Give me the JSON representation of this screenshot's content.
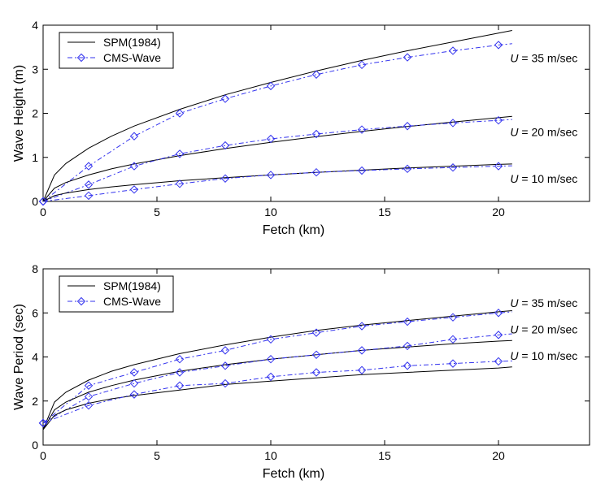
{
  "chart_data": [
    {
      "type": "line",
      "xlabel": "Fetch (km)",
      "ylabel": "Wave Height (m)",
      "xlim": [
        0,
        24
      ],
      "ylim": [
        0,
        4
      ],
      "xticks": [
        0,
        5,
        10,
        15,
        20
      ],
      "yticks": [
        0,
        1,
        2,
        3,
        4
      ],
      "grid": false,
      "legend_position": "top-left",
      "legend": [
        "SPM(1984)",
        "CMS-Wave"
      ],
      "series": [
        {
          "name": "SPM(1984)",
          "group": "U = 35 m/sec",
          "style": "solid",
          "x": [
            0,
            0.5,
            1,
            2,
            3,
            4,
            6,
            8,
            10,
            12,
            14,
            16,
            18,
            20,
            20.6
          ],
          "values": [
            0,
            0.6,
            0.86,
            1.21,
            1.48,
            1.71,
            2.09,
            2.42,
            2.7,
            2.96,
            3.2,
            3.42,
            3.62,
            3.82,
            3.88
          ]
        },
        {
          "name": "CMS-Wave",
          "group": "U = 35 m/sec",
          "style": "dashdot-diamond",
          "x": [
            0,
            2,
            4,
            6,
            8,
            10,
            12,
            14,
            16,
            18,
            20,
            20.6
          ],
          "values": [
            0,
            0.8,
            1.48,
            2.0,
            2.33,
            2.62,
            2.88,
            3.1,
            3.27,
            3.42,
            3.55,
            3.58
          ]
        },
        {
          "name": "SPM(1984)",
          "group": "U = 20 m/sec",
          "style": "solid",
          "x": [
            0,
            0.5,
            1,
            2,
            3,
            4,
            6,
            8,
            10,
            12,
            14,
            16,
            18,
            20,
            20.6
          ],
          "values": [
            0,
            0.3,
            0.43,
            0.6,
            0.74,
            0.85,
            1.04,
            1.2,
            1.34,
            1.47,
            1.59,
            1.7,
            1.8,
            1.9,
            1.93
          ]
        },
        {
          "name": "CMS-Wave",
          "group": "U = 20 m/sec",
          "style": "dashdot-diamond",
          "x": [
            0,
            2,
            4,
            6,
            8,
            10,
            12,
            14,
            16,
            18,
            20,
            20.6
          ],
          "values": [
            0,
            0.38,
            0.8,
            1.08,
            1.27,
            1.42,
            1.53,
            1.63,
            1.71,
            1.78,
            1.84,
            1.86
          ]
        },
        {
          "name": "SPM(1984)",
          "group": "U = 10 m/sec",
          "style": "solid",
          "x": [
            0,
            0.5,
            1,
            2,
            3,
            4,
            6,
            8,
            10,
            12,
            14,
            16,
            18,
            20,
            20.6
          ],
          "values": [
            0,
            0.13,
            0.19,
            0.27,
            0.33,
            0.38,
            0.47,
            0.54,
            0.6,
            0.66,
            0.71,
            0.76,
            0.8,
            0.84,
            0.85
          ]
        },
        {
          "name": "CMS-Wave",
          "group": "U = 10 m/sec",
          "style": "dashdot-diamond",
          "x": [
            0,
            2,
            4,
            6,
            8,
            10,
            12,
            14,
            16,
            18,
            20,
            20.6
          ],
          "values": [
            0,
            0.13,
            0.27,
            0.4,
            0.52,
            0.6,
            0.66,
            0.7,
            0.74,
            0.77,
            0.8,
            0.81
          ]
        }
      ],
      "annotations": [
        {
          "prefix": "U",
          "text": " = 35 m/sec",
          "x": 20.3,
          "y": 3.25
        },
        {
          "prefix": "U",
          "text": " = 20 m/sec",
          "x": 20.3,
          "y": 1.58
        },
        {
          "prefix": "U",
          "text": " = 10 m/sec",
          "x": 20.3,
          "y": 0.52
        }
      ]
    },
    {
      "type": "line",
      "xlabel": "Fetch (km)",
      "ylabel": "Wave Period (sec)",
      "xlim": [
        0,
        24
      ],
      "ylim": [
        0,
        8
      ],
      "xticks": [
        0,
        5,
        10,
        15,
        20
      ],
      "yticks": [
        0,
        2,
        4,
        6,
        8
      ],
      "grid": false,
      "legend_position": "top-left",
      "legend": [
        "SPM(1984)",
        "CMS-Wave"
      ],
      "series": [
        {
          "name": "SPM(1984)",
          "group": "U = 35 m/sec",
          "style": "solid",
          "x": [
            0,
            0.5,
            1,
            2,
            3,
            4,
            6,
            8,
            10,
            12,
            14,
            16,
            18,
            20,
            20.6
          ],
          "values": [
            0.7,
            1.95,
            2.4,
            2.95,
            3.35,
            3.65,
            4.15,
            4.55,
            4.9,
            5.2,
            5.45,
            5.65,
            5.85,
            6.05,
            6.1
          ]
        },
        {
          "name": "CMS-Wave",
          "group": "U = 35 m/sec",
          "style": "dashdot-diamond",
          "x": [
            0,
            2,
            4,
            6,
            8,
            10,
            12,
            14,
            16,
            18,
            20,
            20.6
          ],
          "values": [
            1.0,
            2.7,
            3.3,
            3.9,
            4.3,
            4.8,
            5.1,
            5.4,
            5.6,
            5.8,
            6.0,
            6.05
          ]
        },
        {
          "name": "SPM(1984)",
          "group": "U = 20 m/sec",
          "style": "solid",
          "x": [
            0,
            0.5,
            1,
            2,
            3,
            4,
            6,
            8,
            10,
            12,
            14,
            16,
            18,
            20,
            20.6
          ],
          "values": [
            0.7,
            1.6,
            1.95,
            2.4,
            2.7,
            2.95,
            3.35,
            3.65,
            3.9,
            4.1,
            4.3,
            4.45,
            4.6,
            4.72,
            4.75
          ]
        },
        {
          "name": "CMS-Wave",
          "group": "U = 20 m/sec",
          "style": "dashdot-diamond",
          "x": [
            0,
            2,
            4,
            6,
            8,
            10,
            12,
            14,
            16,
            18,
            20,
            20.6
          ],
          "values": [
            1.0,
            2.2,
            2.8,
            3.3,
            3.6,
            3.9,
            4.1,
            4.3,
            4.5,
            4.8,
            5.0,
            5.05
          ]
        },
        {
          "name": "SPM(1984)",
          "group": "U = 10 m/sec",
          "style": "solid",
          "x": [
            0,
            0.5,
            1,
            2,
            3,
            4,
            6,
            8,
            10,
            12,
            14,
            16,
            18,
            20,
            20.6
          ],
          "values": [
            0.7,
            1.35,
            1.6,
            1.9,
            2.1,
            2.25,
            2.5,
            2.75,
            2.9,
            3.05,
            3.2,
            3.3,
            3.4,
            3.5,
            3.55
          ]
        },
        {
          "name": "CMS-Wave",
          "group": "U = 10 m/sec",
          "style": "dashdot-diamond",
          "x": [
            0,
            2,
            4,
            6,
            8,
            10,
            12,
            14,
            16,
            18,
            20,
            20.6
          ],
          "values": [
            1.0,
            1.8,
            2.3,
            2.7,
            2.8,
            3.1,
            3.3,
            3.4,
            3.6,
            3.7,
            3.8,
            3.82
          ]
        }
      ],
      "annotations": [
        {
          "prefix": "U",
          "text": " = 35 m/sec",
          "x": 20.3,
          "y": 6.45
        },
        {
          "prefix": "U",
          "text": " = 20 m/sec",
          "x": 20.3,
          "y": 5.25
        },
        {
          "prefix": "U",
          "text": " = 10 m/sec",
          "x": 20.3,
          "y": 4.05
        }
      ]
    }
  ]
}
